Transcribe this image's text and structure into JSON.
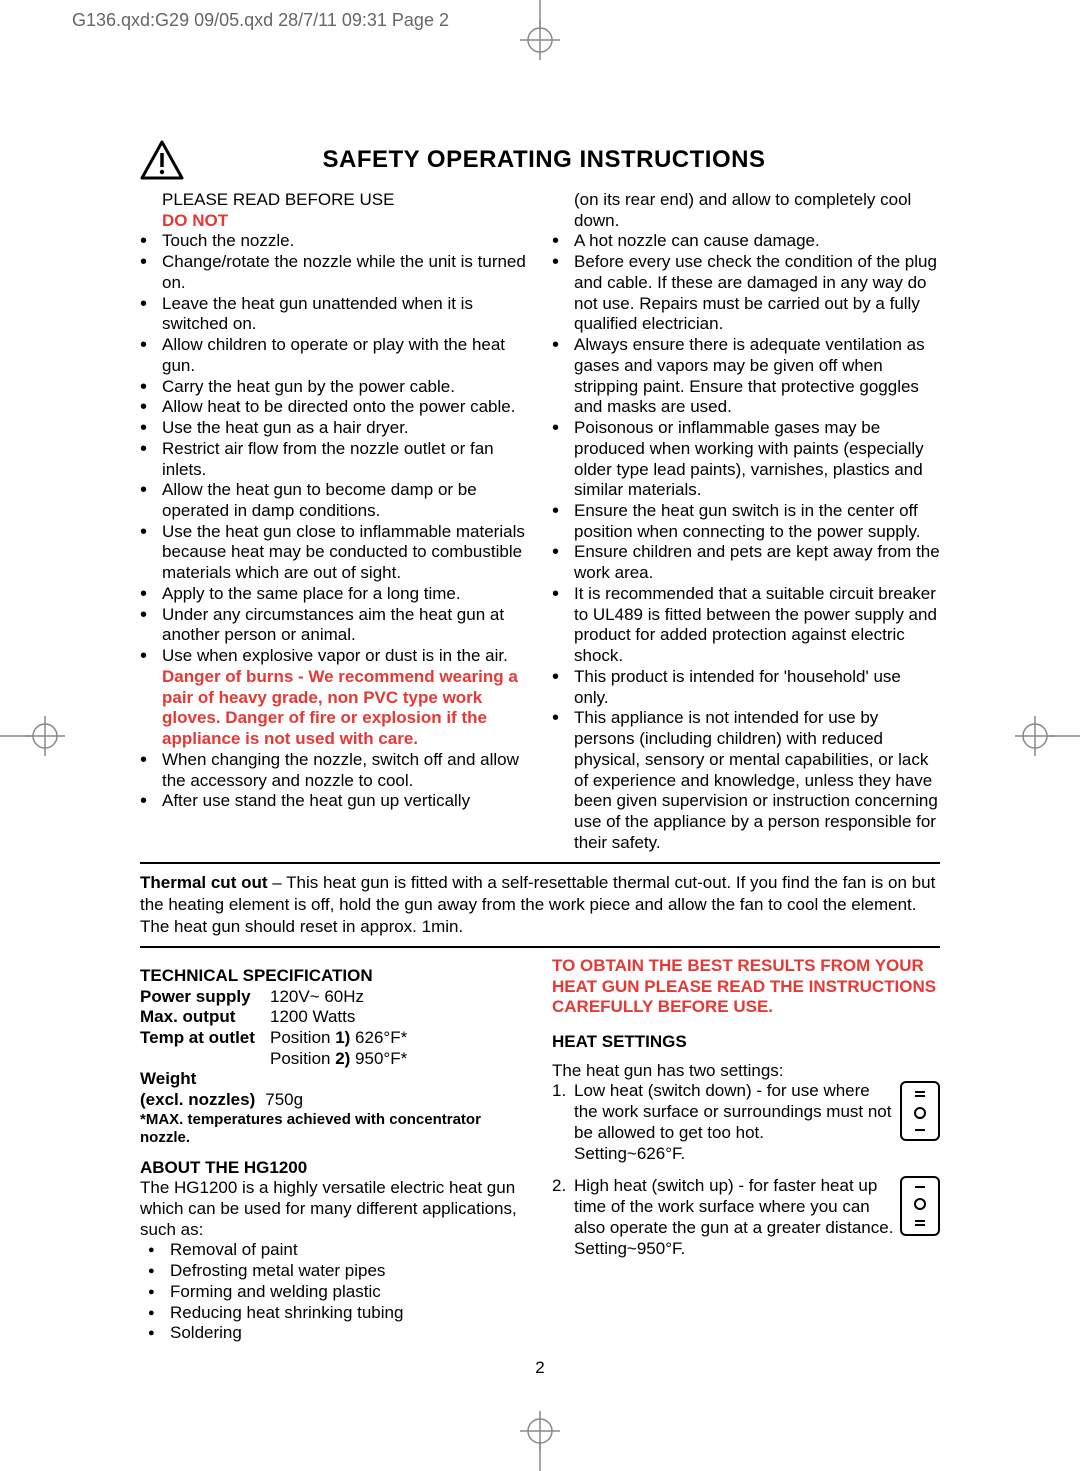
{
  "header": "G136.qxd:G29 09/05.qxd  28/7/11  09:31  Page 2",
  "title": "SAFETY OPERATING INSTRUCTIONS",
  "please_read": "PLEASE READ BEFORE USE",
  "do_not": "DO NOT",
  "left_bullets_1": [
    "Touch the nozzle.",
    "Change/rotate the nozzle while the unit is turned on.",
    "Leave the heat gun unattended when it is switched on.",
    "Allow children to operate or play with the heat gun.",
    "Carry the heat gun by the power cable.",
    "Allow heat to be directed onto the power cable.",
    "Use the heat gun as a hair dryer.",
    "Restrict air flow from the nozzle outlet or fan inlets.",
    "Allow the heat gun to become damp or be operated in damp conditions.",
    "Use the heat gun close to inflammable materials because heat may be conducted to combustible materials which are out of sight.",
    "Apply to the same place for a long time.",
    "Under any circumstances aim the heat gun at another person or animal.",
    "Use when explosive vapor or dust is in the air."
  ],
  "danger_text": "Danger of burns - We recommend wearing a pair of heavy grade, non PVC type work gloves. Danger of fire or explosion if the appliance is not used with care.",
  "left_bullets_2": [
    "When changing the nozzle, switch off and allow the accessory and nozzle to cool.",
    "After use stand the heat gun up vertically"
  ],
  "right_cont": "(on its rear end) and allow to completely cool down.",
  "right_bullets": [
    "A hot nozzle can cause damage.",
    "Before every use check the condition of the plug and cable. If these are damaged in any way do not use. Repairs must be carried out by a fully qualified electrician.",
    "Always ensure there is adequate ventilation as gases and vapors may be given off when stripping paint. Ensure that protective goggles and masks are used.",
    "Poisonous or inflammable gases may be produced when working with paints (especially older type lead paints), varnishes, plastics and similar materials.",
    "Ensure the heat gun switch is in the center off position when connecting to the power supply.",
    "Ensure children and pets are kept away from the work area.",
    "It is recommended that a suitable circuit breaker to UL489 is fitted between the power supply and product for added protection against electric shock.",
    "This product is intended for 'household' use only.",
    "This appliance is not intended for use by persons (including children) with reduced physical, sensory or mental capabilities, or lack of experience and knowledge, unless they have been given supervision or instruction concerning use of the appliance by a person responsible for their safety."
  ],
  "thermal_label": "Thermal cut out",
  "thermal_text": " – This heat gun is fitted with a self-resettable thermal cut-out. If you find the fan is on but the heating element is off, hold the gun away from the work piece and allow the fan to cool the element. The heat gun should reset in approx. 1min.",
  "tech_spec_heading": "TECHNICAL SPECIFICATION",
  "specs": {
    "power_label": "Power supply",
    "power_val": "120V~ 60Hz",
    "output_label": "Max. output",
    "output_val": "1200 Watts",
    "temp_label": "Temp at outlet",
    "temp_val_1a": "Position ",
    "temp_val_1b": "1)",
    "temp_val_1c": " 626°F*",
    "temp_val_2a": "Position ",
    "temp_val_2b": "2)",
    "temp_val_2c": " 950°F*",
    "weight_label_1": "Weight",
    "weight_label_2": "(excl. nozzles)",
    "weight_val": "750g"
  },
  "max_note": "*MAX. temperatures achieved with concentrator nozzle.",
  "about_heading": "ABOUT THE HG1200",
  "about_text": "The HG1200 is a highly versatile electric heat gun which can be used for many different applications, such as:",
  "about_list": [
    "Removal of paint",
    "Defrosting metal water pipes",
    "Forming and welding plastic",
    "Reducing heat shrinking tubing",
    "Soldering"
  ],
  "best_results": "TO OBTAIN THE BEST RESULTS FROM YOUR HEAT GUN  PLEASE READ THE INSTRUCTIONS CAREFULLY BEFORE USE.",
  "heat_heading": "HEAT SETTINGS",
  "heat_intro": "The heat gun has two settings:",
  "heat_1": "Low heat (switch down) - for use where the work surface or surroundings must not be allowed to get too hot.\nSetting~626°F.",
  "heat_2": "High heat (switch up) - for faster heat up time of the work surface where you can also operate the gun at a greater distance.\nSetting~950°F.",
  "page_number": "2"
}
